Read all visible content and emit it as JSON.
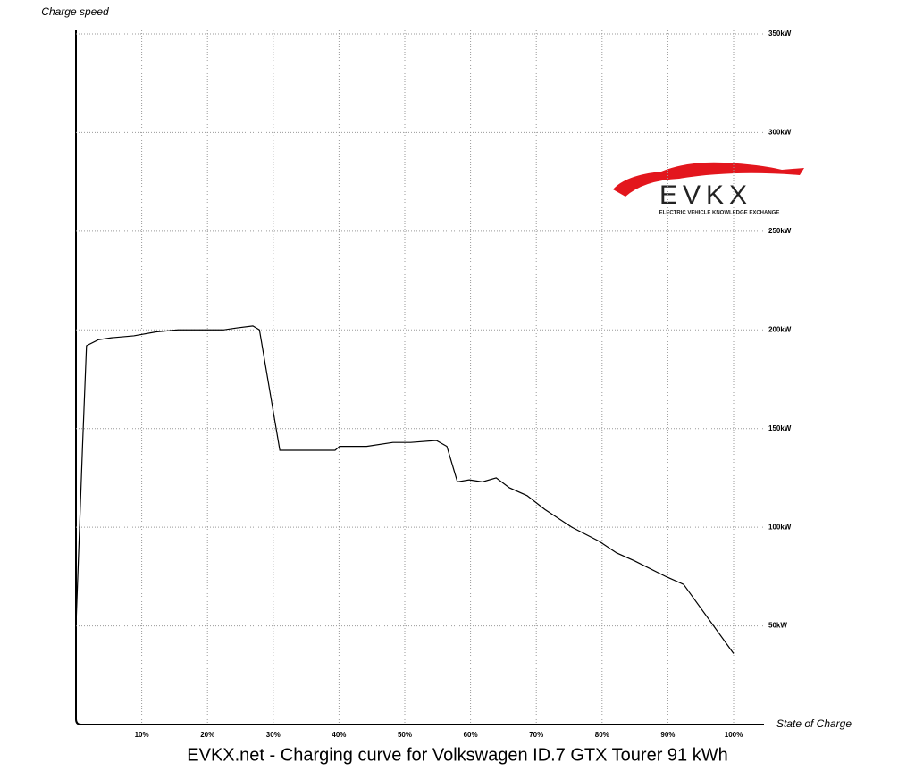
{
  "chart_data": {
    "type": "line",
    "title": "EVKX.net - Charging curve for Volkswagen ID.7 GTX Tourer 91 kWh",
    "y_label": "Charge speed",
    "x_label": "State of Charge",
    "logo": {
      "text": "EVKX",
      "tagline": "ELECTRIC VEHICLE KNOWLEDGE EXCHANGE"
    },
    "x": [
      0,
      1,
      1.6,
      3.4,
      5.4,
      8.8,
      12.2,
      15.5,
      22.4,
      24.5,
      26.9,
      27.9,
      31,
      39.4,
      40.1,
      44.2,
      48.2,
      50.9,
      54.8,
      56.4,
      58,
      59.8,
      61.8,
      63.9,
      65.9,
      68.6,
      71.3,
      75.4,
      79.5,
      82.2,
      84.9,
      89.7,
      92.4,
      100
    ],
    "values": [
      50,
      141,
      192,
      195,
      196,
      197,
      199,
      200,
      200,
      201,
      202,
      200,
      139,
      139,
      141,
      141,
      143,
      143,
      144,
      141,
      123,
      124,
      123,
      125,
      120,
      116,
      109,
      100,
      93,
      87,
      83,
      75,
      71,
      36
    ],
    "color": "#000000",
    "xlim": [
      0,
      100
    ],
    "ylim": [
      0,
      350
    ],
    "xticks": [
      {
        "value": 10,
        "label": "10%"
      },
      {
        "value": 20,
        "label": "20%"
      },
      {
        "value": 30,
        "label": "30%"
      },
      {
        "value": 40,
        "label": "40%"
      },
      {
        "value": 50,
        "label": "50%"
      },
      {
        "value": 60,
        "label": "60%"
      },
      {
        "value": 70,
        "label": "70%"
      },
      {
        "value": 80,
        "label": "80%"
      },
      {
        "value": 90,
        "label": "90%"
      },
      {
        "value": 100,
        "label": "100%"
      }
    ],
    "yticks": [
      {
        "value": 50,
        "label": "50kW"
      },
      {
        "value": 100,
        "label": "100kW"
      },
      {
        "value": 150,
        "label": "150kW"
      },
      {
        "value": 200,
        "label": "200kW"
      },
      {
        "value": 250,
        "label": "250kW"
      },
      {
        "value": 300,
        "label": "300kW"
      },
      {
        "value": 350,
        "label": "350kW"
      }
    ],
    "grid": true
  }
}
